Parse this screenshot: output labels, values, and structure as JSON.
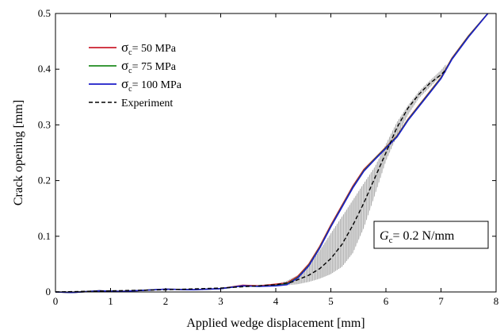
{
  "chart_data": {
    "type": "line",
    "xlabel": "Applied wedge displacement   [mm]",
    "ylabel": "Crack opening   [mm]",
    "xlim": [
      0,
      8
    ],
    "ylim": [
      0,
      0.5
    ],
    "xticks": [
      "0",
      "1",
      "2",
      "3",
      "4",
      "5",
      "6",
      "7",
      "8"
    ],
    "yticks": [
      "0",
      "0.1",
      "0.2",
      "0.3",
      "0.4",
      "0.5"
    ],
    "grid": false,
    "legend_position": "top-left",
    "annotation": {
      "main": "G",
      "sub": "c",
      "rest": "= 0.2 N/mm"
    },
    "series": [
      {
        "label_main": "σ",
        "label_sub": "c",
        "label_rest": "=   50 MPa",
        "color": "#cc1f2e",
        "style": "solid",
        "points": [
          [
            0,
            0.0
          ],
          [
            0.3,
            -0.001
          ],
          [
            0.8,
            0.002
          ],
          [
            1.2,
            0.001
          ],
          [
            1.6,
            0.003
          ],
          [
            2.0,
            0.005
          ],
          [
            2.5,
            0.004
          ],
          [
            3.0,
            0.006
          ],
          [
            3.4,
            0.012
          ],
          [
            3.7,
            0.011
          ],
          [
            4.0,
            0.014
          ],
          [
            4.2,
            0.016
          ],
          [
            4.4,
            0.028
          ],
          [
            4.6,
            0.05
          ],
          [
            4.8,
            0.082
          ],
          [
            5.0,
            0.12
          ],
          [
            5.2,
            0.155
          ],
          [
            5.4,
            0.19
          ],
          [
            5.6,
            0.22
          ],
          [
            5.8,
            0.24
          ],
          [
            6.0,
            0.26
          ],
          [
            6.2,
            0.28
          ],
          [
            6.4,
            0.31
          ],
          [
            6.6,
            0.335
          ],
          [
            6.8,
            0.36
          ],
          [
            7.0,
            0.385
          ],
          [
            7.2,
            0.42
          ],
          [
            7.5,
            0.46
          ],
          [
            7.85,
            0.5
          ]
        ]
      },
      {
        "label_main": "σ",
        "label_sub": "c",
        "label_rest": "=   75 MPa",
        "color": "#1f8c1f",
        "style": "solid",
        "points": [
          [
            0,
            0.0
          ],
          [
            0.3,
            -0.001
          ],
          [
            0.8,
            0.002
          ],
          [
            1.2,
            0.001
          ],
          [
            1.6,
            0.003
          ],
          [
            2.0,
            0.005
          ],
          [
            2.5,
            0.004
          ],
          [
            3.0,
            0.006
          ],
          [
            3.4,
            0.011
          ],
          [
            3.7,
            0.01
          ],
          [
            4.0,
            0.012
          ],
          [
            4.2,
            0.014
          ],
          [
            4.4,
            0.026
          ],
          [
            4.6,
            0.048
          ],
          [
            4.8,
            0.08
          ],
          [
            5.0,
            0.118
          ],
          [
            5.2,
            0.153
          ],
          [
            5.4,
            0.188
          ],
          [
            5.6,
            0.218
          ],
          [
            5.8,
            0.239
          ],
          [
            6.0,
            0.259
          ],
          [
            6.2,
            0.279
          ],
          [
            6.4,
            0.309
          ],
          [
            6.6,
            0.334
          ],
          [
            6.8,
            0.359
          ],
          [
            7.0,
            0.384
          ],
          [
            7.2,
            0.419
          ],
          [
            7.5,
            0.459
          ],
          [
            7.85,
            0.5
          ]
        ]
      },
      {
        "label_main": "σ",
        "label_sub": "c",
        "label_rest": "= 100 MPa",
        "color": "#1c1cc8",
        "style": "solid",
        "points": [
          [
            0,
            0.0
          ],
          [
            0.3,
            -0.001
          ],
          [
            0.8,
            0.002
          ],
          [
            1.2,
            0.001
          ],
          [
            1.6,
            0.003
          ],
          [
            2.0,
            0.005
          ],
          [
            2.5,
            0.004
          ],
          [
            3.0,
            0.006
          ],
          [
            3.4,
            0.011
          ],
          [
            3.7,
            0.01
          ],
          [
            4.0,
            0.011
          ],
          [
            4.2,
            0.013
          ],
          [
            4.4,
            0.025
          ],
          [
            4.6,
            0.047
          ],
          [
            4.8,
            0.079
          ],
          [
            5.0,
            0.117
          ],
          [
            5.2,
            0.152
          ],
          [
            5.4,
            0.187
          ],
          [
            5.6,
            0.217
          ],
          [
            5.8,
            0.238
          ],
          [
            6.0,
            0.258
          ],
          [
            6.2,
            0.278
          ],
          [
            6.4,
            0.308
          ],
          [
            6.6,
            0.333
          ],
          [
            6.8,
            0.358
          ],
          [
            7.0,
            0.383
          ],
          [
            7.2,
            0.418
          ],
          [
            7.5,
            0.458
          ],
          [
            7.85,
            0.5
          ]
        ]
      },
      {
        "label_main": "",
        "label_sub": "",
        "label_rest": "Experiment",
        "color": "#000000",
        "style": "dashed",
        "points": [
          [
            0,
            0.0
          ],
          [
            1.0,
            0.002
          ],
          [
            2.0,
            0.004
          ],
          [
            3.0,
            0.007
          ],
          [
            3.5,
            0.01
          ],
          [
            4.0,
            0.013
          ],
          [
            4.3,
            0.018
          ],
          [
            4.6,
            0.03
          ],
          [
            4.8,
            0.042
          ],
          [
            5.0,
            0.06
          ],
          [
            5.2,
            0.085
          ],
          [
            5.4,
            0.12
          ],
          [
            5.6,
            0.16
          ],
          [
            5.8,
            0.205
          ],
          [
            6.0,
            0.25
          ],
          [
            6.2,
            0.295
          ],
          [
            6.4,
            0.33
          ],
          [
            6.6,
            0.355
          ],
          [
            6.8,
            0.375
          ],
          [
            7.0,
            0.39
          ],
          [
            7.1,
            0.4
          ]
        ]
      }
    ],
    "experiment_band": {
      "color": "#b4b4b4",
      "upper": [
        [
          3.8,
          0.012
        ],
        [
          4.0,
          0.014
        ],
        [
          4.2,
          0.02
        ],
        [
          4.4,
          0.03
        ],
        [
          4.6,
          0.048
        ],
        [
          4.8,
          0.075
        ],
        [
          5.0,
          0.105
        ],
        [
          5.2,
          0.135
        ],
        [
          5.4,
          0.165
        ],
        [
          5.6,
          0.195
        ],
        [
          5.8,
          0.225
        ],
        [
          6.0,
          0.265
        ],
        [
          6.2,
          0.305
        ],
        [
          6.4,
          0.335
        ],
        [
          6.6,
          0.36
        ],
        [
          6.8,
          0.38
        ],
        [
          7.0,
          0.398
        ],
        [
          7.1,
          0.41
        ]
      ],
      "lower": [
        [
          3.8,
          0.01
        ],
        [
          4.0,
          0.011
        ],
        [
          4.2,
          0.012
        ],
        [
          4.4,
          0.014
        ],
        [
          4.6,
          0.018
        ],
        [
          4.8,
          0.024
        ],
        [
          5.0,
          0.032
        ],
        [
          5.2,
          0.045
        ],
        [
          5.4,
          0.07
        ],
        [
          5.6,
          0.115
        ],
        [
          5.8,
          0.175
        ],
        [
          6.0,
          0.235
        ],
        [
          6.2,
          0.28
        ],
        [
          6.4,
          0.318
        ],
        [
          6.6,
          0.348
        ],
        [
          6.8,
          0.368
        ],
        [
          7.0,
          0.388
        ],
        [
          7.1,
          0.395
        ]
      ]
    }
  }
}
